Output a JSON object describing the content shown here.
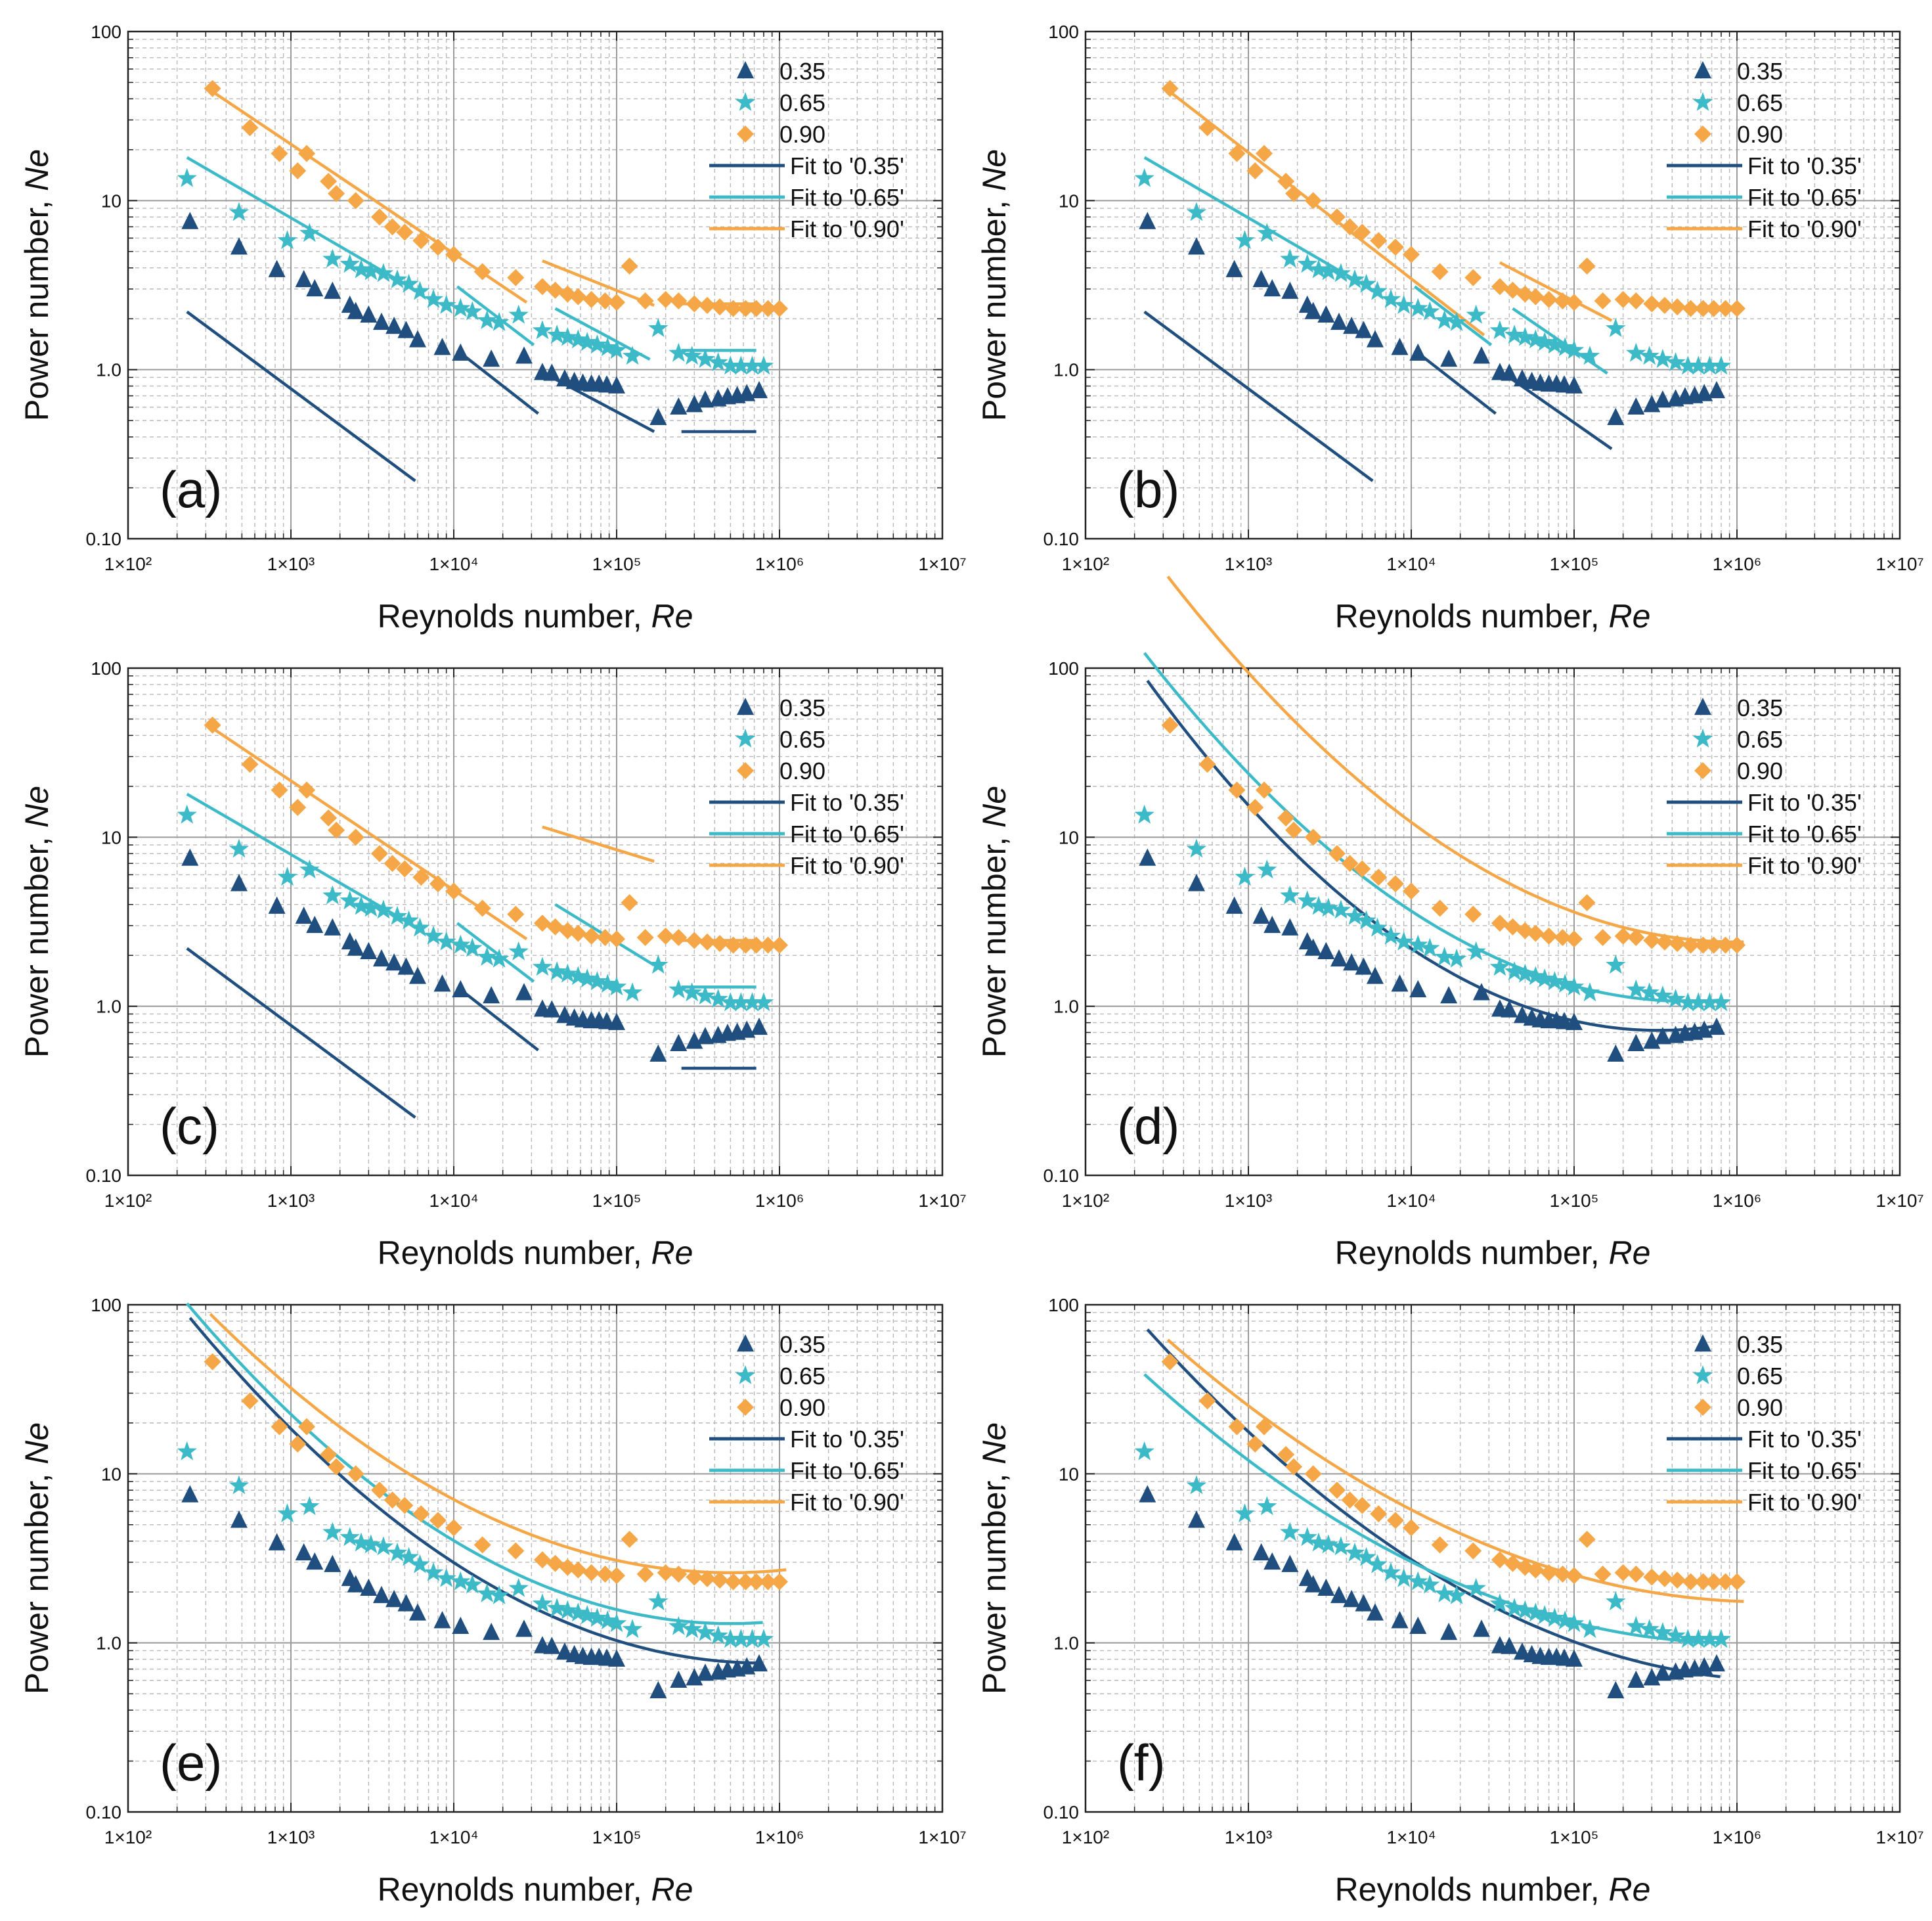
{
  "figure": {
    "colors": {
      "s035": "#1f4e7f",
      "s065": "#3dbac8",
      "s090": "#f5a646"
    },
    "legend_labels": [
      "0.35",
      "0.65",
      "0.90",
      "Fit to '0.35'",
      "Fit to '0.65'",
      "Fit to '0.90'"
    ]
  },
  "chart_data": [
    {
      "type": "scatter",
      "panel": "(a)",
      "xlabel": "Reynolds number, ",
      "xlabel_italic": "Re",
      "ylabel": "Power number, ",
      "ylabel_italic": "Ne",
      "xscale": "log",
      "yscale": "log",
      "xlim": [
        100,
        10000000
      ],
      "ylim": [
        0.1,
        100
      ],
      "xticks": [
        "1×10²",
        "1×10³",
        "1×10⁴",
        "1×10⁵",
        "1×10⁶",
        "1×10⁷"
      ],
      "yticks": [
        "0.10",
        "1.0",
        "10",
        "100"
      ],
      "grid": true,
      "legend_position": "top-right",
      "fit_style": "piecewise-segments"
    },
    {
      "type": "scatter",
      "panel": "(b)",
      "xlabel": "Reynolds number, ",
      "xlabel_italic": "Re",
      "ylabel": "Power number, ",
      "ylabel_italic": "Ne",
      "xscale": "log",
      "yscale": "log",
      "xlim": [
        100,
        10000000
      ],
      "ylim": [
        0.1,
        100
      ],
      "xticks": [
        "1×10²",
        "1×10³",
        "1×10⁴",
        "1×10⁵",
        "1×10⁶",
        "1×10⁷"
      ],
      "yticks": [
        "0.10",
        "1.0",
        "10",
        "100"
      ],
      "grid": true,
      "legend_position": "top-right",
      "fit_style": "piecewise-segments"
    },
    {
      "type": "scatter",
      "panel": "(c)",
      "xlabel": "Reynolds number, ",
      "xlabel_italic": "Re",
      "ylabel": "Power number, ",
      "ylabel_italic": "Ne",
      "xscale": "log",
      "yscale": "log",
      "xlim": [
        100,
        10000000
      ],
      "ylim": [
        0.1,
        100
      ],
      "xticks": [
        "1×10²",
        "1×10³",
        "1×10⁴",
        "1×10⁵",
        "1×10⁶",
        "1×10⁷"
      ],
      "yticks": [
        "0.10",
        "1.0",
        "10",
        "100"
      ],
      "grid": true,
      "legend_position": "top-right",
      "fit_style": "piecewise-segments"
    },
    {
      "type": "scatter",
      "panel": "(d)",
      "xlabel": "Reynolds number, ",
      "xlabel_italic": "Re",
      "ylabel": "Power number, ",
      "ylabel_italic": "Ne",
      "xscale": "log",
      "yscale": "log",
      "xlim": [
        100,
        10000000
      ],
      "ylim": [
        0.1,
        100
      ],
      "xticks": [
        "1×10²",
        "1×10³",
        "1×10⁴",
        "1×10⁵",
        "1×10⁶",
        "1×10⁷"
      ],
      "yticks": [
        "0.10",
        "1.0",
        "10",
        "100"
      ],
      "grid": true,
      "legend_position": "top-right",
      "fit_style": "quadratic-log"
    },
    {
      "type": "scatter",
      "panel": "(e)",
      "xlabel": "Reynolds number, ",
      "xlabel_italic": "Re",
      "ylabel": "Power number, ",
      "ylabel_italic": "Ne",
      "xscale": "log",
      "yscale": "log",
      "xlim": [
        100,
        10000000
      ],
      "ylim": [
        0.1,
        100
      ],
      "xticks": [
        "1×10²",
        "1×10³",
        "1×10⁴",
        "1×10⁵",
        "1×10⁶",
        "1×10⁷"
      ],
      "yticks": [
        "0.10",
        "1.0",
        "10",
        "100"
      ],
      "grid": true,
      "legend_position": "top-right",
      "fit_style": "quadratic-log"
    },
    {
      "type": "scatter",
      "panel": "(f)",
      "xlabel": "Reynolds number, ",
      "xlabel_italic": "Re",
      "ylabel": "Power number, ",
      "ylabel_italic": "Ne",
      "xscale": "log",
      "yscale": "log",
      "xlim": [
        100,
        10000000
      ],
      "ylim": [
        0.1,
        100
      ],
      "xticks": [
        "1×10²",
        "1×10³",
        "1×10⁴",
        "1×10⁵",
        "1×10⁶",
        "1×10⁷"
      ],
      "yticks": [
        "0.10",
        "1.0",
        "10",
        "100"
      ],
      "grid": true,
      "legend_position": "top-right",
      "fit_style": "quadratic-log"
    }
  ],
  "series": [
    {
      "name": "0.35",
      "marker": "triangle",
      "color_key": "s035",
      "points": [
        [
          240,
          7.5
        ],
        [
          480,
          5.3
        ],
        [
          820,
          3.9
        ],
        [
          1200,
          3.4
        ],
        [
          1400,
          3.0
        ],
        [
          1800,
          2.9
        ],
        [
          2300,
          2.4
        ],
        [
          2500,
          2.2
        ],
        [
          3000,
          2.1
        ],
        [
          3600,
          1.9
        ],
        [
          4300,
          1.8
        ],
        [
          5100,
          1.7
        ],
        [
          6000,
          1.5
        ],
        [
          8500,
          1.35
        ],
        [
          11000,
          1.25
        ],
        [
          17000,
          1.15
        ],
        [
          27000,
          1.2
        ],
        [
          35000,
          0.96
        ],
        [
          40000,
          0.95
        ],
        [
          48000,
          0.88
        ],
        [
          55000,
          0.85
        ],
        [
          62000,
          0.83
        ],
        [
          70000,
          0.82
        ],
        [
          78000,
          0.82
        ],
        [
          87000,
          0.81
        ],
        [
          100000,
          0.8
        ],
        [
          180000,
          0.52
        ],
        [
          240000,
          0.6
        ],
        [
          300000,
          0.62
        ],
        [
          350000,
          0.66
        ],
        [
          420000,
          0.67
        ],
        [
          480000,
          0.69
        ],
        [
          550000,
          0.7
        ],
        [
          630000,
          0.72
        ],
        [
          750000,
          0.75
        ]
      ]
    },
    {
      "name": "0.65",
      "marker": "star",
      "color_key": "s065",
      "points": [
        [
          230,
          13.5
        ],
        [
          480,
          8.5
        ],
        [
          950,
          5.8
        ],
        [
          1300,
          6.4
        ],
        [
          1800,
          4.5
        ],
        [
          2300,
          4.2
        ],
        [
          2700,
          3.9
        ],
        [
          3100,
          3.8
        ],
        [
          3700,
          3.7
        ],
        [
          4500,
          3.4
        ],
        [
          5300,
          3.2
        ],
        [
          6200,
          2.9
        ],
        [
          7500,
          2.6
        ],
        [
          9000,
          2.4
        ],
        [
          11000,
          2.3
        ],
        [
          13000,
          2.2
        ],
        [
          16000,
          1.95
        ],
        [
          19000,
          1.9
        ],
        [
          25000,
          2.1
        ],
        [
          35000,
          1.7
        ],
        [
          43000,
          1.6
        ],
        [
          50000,
          1.55
        ],
        [
          58000,
          1.5
        ],
        [
          66000,
          1.45
        ],
        [
          76000,
          1.4
        ],
        [
          88000,
          1.35
        ],
        [
          100000,
          1.3
        ],
        [
          125000,
          1.2
        ],
        [
          180000,
          1.75
        ],
        [
          240000,
          1.25
        ],
        [
          290000,
          1.2
        ],
        [
          350000,
          1.15
        ],
        [
          420000,
          1.1
        ],
        [
          500000,
          1.05
        ],
        [
          580000,
          1.05
        ],
        [
          680000,
          1.05
        ],
        [
          800000,
          1.05
        ]
      ]
    },
    {
      "name": "0.90",
      "marker": "diamond",
      "color_key": "s090",
      "points": [
        [
          330,
          46
        ],
        [
          560,
          27
        ],
        [
          850,
          19
        ],
        [
          1100,
          15
        ],
        [
          1250,
          19
        ],
        [
          1700,
          13
        ],
        [
          1900,
          11
        ],
        [
          2500,
          10
        ],
        [
          3500,
          8
        ],
        [
          4200,
          7
        ],
        [
          5000,
          6.5
        ],
        [
          6300,
          5.8
        ],
        [
          8000,
          5.3
        ],
        [
          10000,
          4.8
        ],
        [
          15000,
          3.8
        ],
        [
          24000,
          3.5
        ],
        [
          35000,
          3.1
        ],
        [
          42000,
          2.95
        ],
        [
          50000,
          2.8
        ],
        [
          58000,
          2.7
        ],
        [
          70000,
          2.6
        ],
        [
          85000,
          2.55
        ],
        [
          100000,
          2.5
        ],
        [
          120000,
          4.1
        ],
        [
          150000,
          2.55
        ],
        [
          200000,
          2.6
        ],
        [
          240000,
          2.55
        ],
        [
          300000,
          2.45
        ],
        [
          360000,
          2.4
        ],
        [
          430000,
          2.35
        ],
        [
          520000,
          2.3
        ],
        [
          620000,
          2.3
        ],
        [
          720000,
          2.3
        ],
        [
          850000,
          2.3
        ],
        [
          1000000,
          2.3
        ]
      ]
    }
  ],
  "fits": {
    "piecewise": {
      "a": [
        {
          "key": "s035",
          "segments": [
            [
              [
                230,
                2.2
              ],
              [
                5800,
                0.22
              ]
            ],
            [
              [
                10500,
                1.3
              ],
              [
                33000,
                0.55
              ]
            ],
            [
              [
                40000,
                0.9
              ],
              [
                170000,
                0.43
              ]
            ],
            [
              [
                250000,
                0.43
              ],
              [
                720000,
                0.43
              ]
            ]
          ]
        },
        {
          "key": "s065",
          "segments": [
            [
              [
                230,
                18
              ],
              [
                6000,
                2.9
              ]
            ],
            [
              [
                10500,
                3.1
              ],
              [
                31000,
                1.4
              ]
            ],
            [
              [
                42000,
                2.3
              ],
              [
                160000,
                1.15
              ]
            ],
            [
              [
                250000,
                1.3
              ],
              [
                720000,
                1.3
              ]
            ]
          ]
        },
        {
          "key": "s090",
          "segments": [
            [
              [
                320,
                45
              ],
              [
                28000,
                2.5
              ]
            ],
            [
              [
                35000,
                4.4
              ],
              [
                170000,
                2.4
              ]
            ],
            [
              [
                250000,
                2.45
              ],
              [
                720000,
                2.45
              ]
            ]
          ]
        }
      ],
      "b": [
        {
          "key": "s035",
          "segments": [
            [
              [
                230,
                2.2
              ],
              [
                5800,
                0.22
              ]
            ],
            [
              [
                10500,
                1.3
              ],
              [
                33000,
                0.55
              ]
            ],
            [
              [
                40000,
                0.9
              ],
              [
                170000,
                0.34
              ]
            ]
          ]
        },
        {
          "key": "s065",
          "segments": [
            [
              [
                230,
                18
              ],
              [
                6000,
                2.9
              ]
            ],
            [
              [
                10500,
                3.1
              ],
              [
                31000,
                1.4
              ]
            ],
            [
              [
                42000,
                2.3
              ],
              [
                160000,
                0.95
              ]
            ]
          ]
        },
        {
          "key": "s090",
          "segments": [
            [
              [
                320,
                45
              ],
              [
                28000,
                1.6
              ]
            ],
            [
              [
                35000,
                4.3
              ],
              [
                170000,
                1.95
              ]
            ]
          ]
        }
      ],
      "c": [
        {
          "key": "s035",
          "segments": [
            [
              [
                230,
                2.2
              ],
              [
                5800,
                0.22
              ]
            ],
            [
              [
                10500,
                1.3
              ],
              [
                33000,
                0.55
              ]
            ],
            [
              [
                250000,
                0.43
              ],
              [
                720000,
                0.43
              ]
            ]
          ]
        },
        {
          "key": "s065",
          "segments": [
            [
              [
                230,
                18
              ],
              [
                6000,
                2.9
              ]
            ],
            [
              [
                10500,
                3.1
              ],
              [
                31000,
                1.4
              ]
            ],
            [
              [
                42000,
                4.0
              ],
              [
                170000,
                1.75
              ]
            ],
            [
              [
                250000,
                1.3
              ],
              [
                720000,
                1.3
              ]
            ]
          ]
        },
        {
          "key": "s090",
          "segments": [
            [
              [
                320,
                45
              ],
              [
                28000,
                2.5
              ]
            ],
            [
              [
                35000,
                11.5
              ],
              [
                170000,
                7.2
              ]
            ],
            [
              [
                250000,
                2.45
              ],
              [
                720000,
                2.45
              ]
            ]
          ]
        }
      ]
    },
    "quadratic": {
      "d": [
        {
          "key": "s035",
          "from": 240,
          "to": 790000,
          "vertex": [
            330000,
            0.72
          ],
          "a": 0.21
        },
        {
          "key": "s065",
          "from": 230,
          "to": 790000,
          "vertex": [
            500000,
            1.07
          ],
          "a": 0.185
        },
        {
          "key": "s090",
          "from": 320,
          "to": 1100000,
          "vertex": [
            1000000,
            2.4
          ],
          "a": 0.177
        }
      ],
      "e": [
        {
          "key": "s035",
          "from": 240,
          "to": 790000,
          "vertex": [
            790000,
            0.76
          ],
          "a": 0.165
        },
        {
          "key": "s065",
          "from": 230,
          "to": 790000,
          "vertex": [
            500000,
            1.3
          ],
          "a": 0.17
        },
        {
          "key": "s090",
          "from": 320,
          "to": 1100000,
          "vertex": [
            500000,
            2.6
          ],
          "a": 0.15
        }
      ],
      "f": [
        {
          "key": "s035",
          "from": 240,
          "to": 790000,
          "vertex": [
            2000000,
            0.6
          ],
          "a": 0.135
        },
        {
          "key": "s065",
          "from": 230,
          "to": 790000,
          "vertex": [
            1000000,
            1.0
          ],
          "a": 0.12
        },
        {
          "key": "s090",
          "from": 320,
          "to": 1100000,
          "vertex": [
            1500000,
            1.75
          ],
          "a": 0.115
        }
      ]
    }
  }
}
